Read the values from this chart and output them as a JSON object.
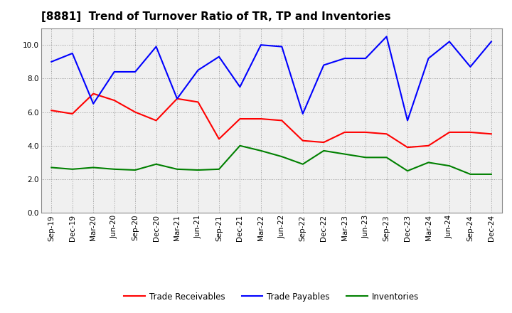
{
  "title": "[8881]  Trend of Turnover Ratio of TR, TP and Inventories",
  "labels": [
    "Sep-19",
    "Dec-19",
    "Mar-20",
    "Jun-20",
    "Sep-20",
    "Dec-20",
    "Mar-21",
    "Jun-21",
    "Sep-21",
    "Dec-21",
    "Mar-22",
    "Jun-22",
    "Sep-22",
    "Dec-22",
    "Mar-23",
    "Jun-23",
    "Sep-23",
    "Dec-23",
    "Mar-24",
    "Jun-24",
    "Sep-24",
    "Dec-24"
  ],
  "trade_receivables": [
    6.1,
    5.9,
    7.1,
    6.7,
    6.0,
    5.5,
    6.8,
    6.6,
    4.4,
    5.6,
    5.6,
    5.5,
    4.3,
    4.2,
    4.8,
    4.8,
    4.7,
    3.9,
    4.0,
    4.8,
    4.8,
    4.7
  ],
  "trade_payables": [
    9.0,
    9.5,
    6.5,
    8.4,
    8.4,
    9.9,
    6.8,
    8.5,
    9.3,
    7.5,
    10.0,
    9.9,
    5.9,
    8.8,
    9.2,
    9.2,
    10.5,
    5.5,
    9.2,
    10.2,
    8.7,
    10.2
  ],
  "inventories": [
    2.7,
    2.6,
    2.7,
    2.6,
    2.55,
    2.9,
    2.6,
    2.55,
    2.6,
    4.0,
    3.7,
    3.35,
    2.9,
    3.7,
    3.5,
    3.3,
    3.3,
    2.5,
    3.0,
    2.8,
    2.3,
    2.3
  ],
  "ylim": [
    0,
    11
  ],
  "yticks": [
    0.0,
    2.0,
    4.0,
    6.0,
    8.0,
    10.0
  ],
  "color_tr": "#ff0000",
  "color_tp": "#0000ff",
  "color_inv": "#008000",
  "background_color": "#ffffff",
  "plot_bg_color": "#f0f0f0",
  "grid_color": "#999999",
  "legend_tr": "Trade Receivables",
  "legend_tp": "Trade Payables",
  "legend_inv": "Inventories",
  "title_fontsize": 11,
  "tick_fontsize": 7.5,
  "legend_fontsize": 8.5
}
